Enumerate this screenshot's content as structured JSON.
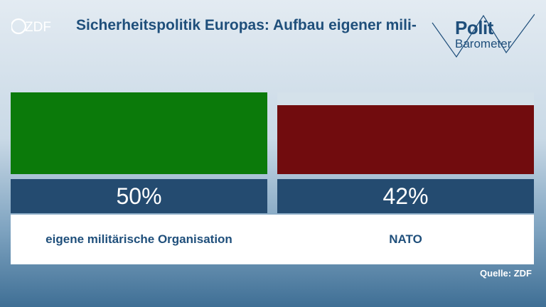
{
  "header": {
    "logo_text": "ZDF",
    "title": "Sicherheitspolitik Europas: Aufbau eigener mili-"
  },
  "brand": {
    "line1": "Polit",
    "line2": "Barometer"
  },
  "chart_data": {
    "type": "bar",
    "categories": [
      "eigene militärische Organisation",
      "NATO"
    ],
    "values": [
      50,
      42
    ],
    "value_labels": [
      "50%",
      "42%"
    ],
    "colors": [
      "#0b7a0a",
      "#710c0e"
    ],
    "ylim": [
      0,
      50
    ]
  },
  "source": "Quelle: ZDF",
  "colors": {
    "title": "#1f4f7b",
    "band": "#244b70",
    "track": "#d4e1ea"
  }
}
